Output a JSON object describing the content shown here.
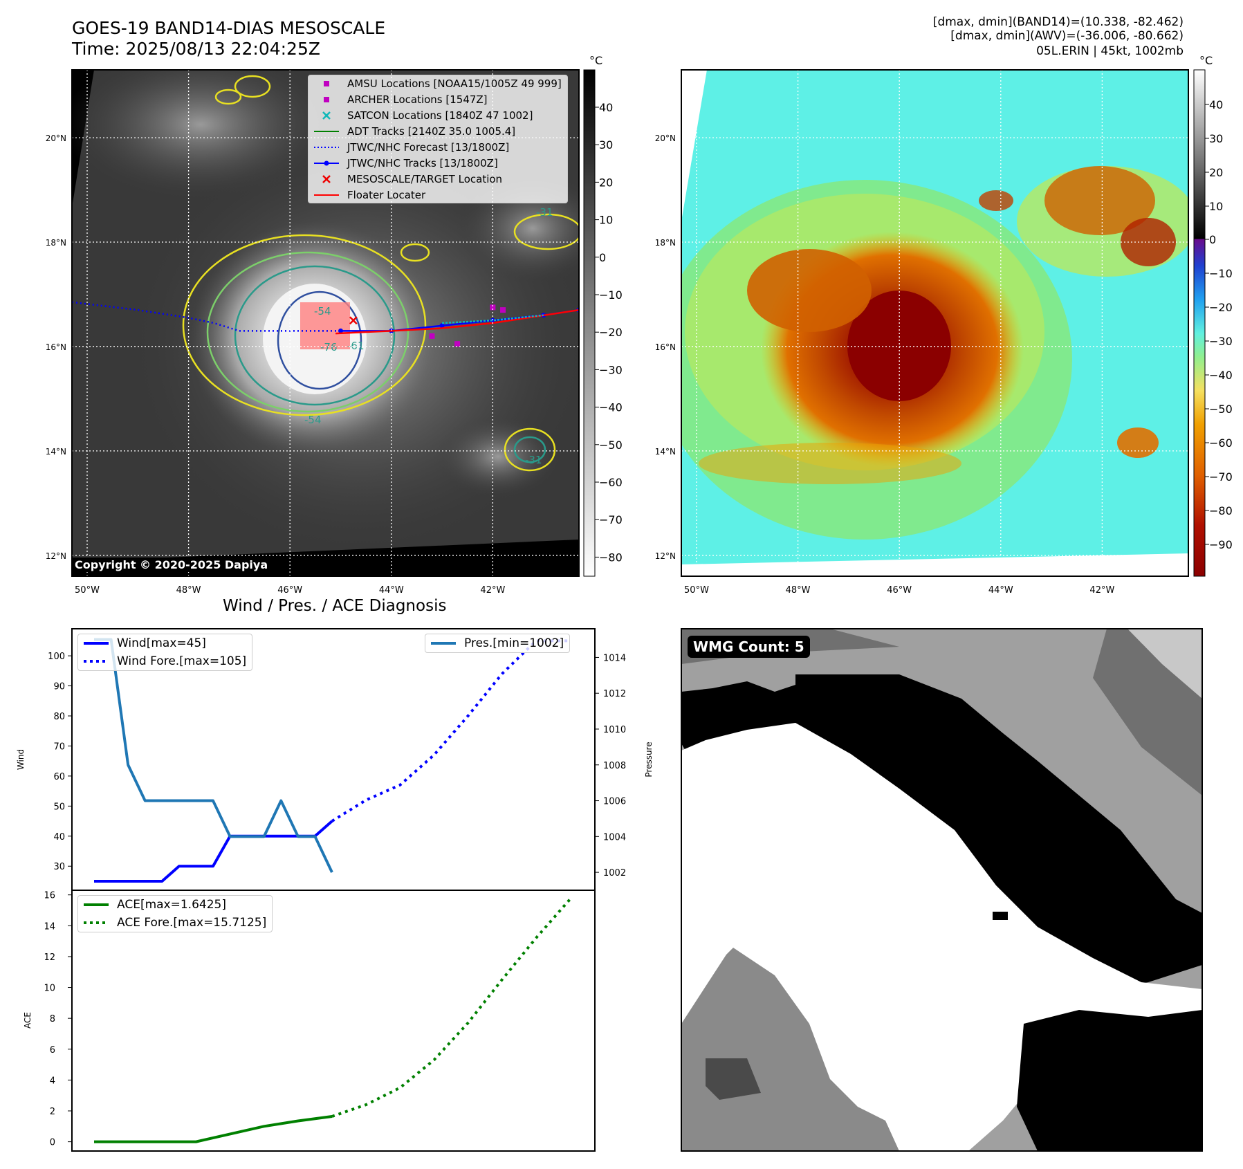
{
  "header": {
    "title": "GOES-19 BAND14-DIAS MESOSCALE",
    "time": "Time: 2025/08/13 22:04:25Z",
    "stats_band14": "[dmax, dmin](BAND14)=(10.338, -82.462)",
    "stats_awv": "[dmax, dmin](AWV)=(-36.006, -80.662)",
    "storm_info": "05L.ERIN | 45kt, 1002mb"
  },
  "colors": {
    "amsu": "#c000c0",
    "archer": "#c000c0",
    "satcon": "#10b8b8",
    "adt": "#008000",
    "jtwc_forecast": "#0000ff",
    "jtwc_tracks": "#0000ff",
    "target": "#ee0000",
    "floater": "#ff0000",
    "wind": "#0000ff",
    "pressure": "#1f77b4",
    "ace": "#008000"
  },
  "map": {
    "lon_ticks": [
      "50°W",
      "48°W",
      "46°W",
      "44°W",
      "42°W"
    ],
    "lat_ticks": [
      "12°N",
      "14°N",
      "16°N",
      "18°N",
      "20°N"
    ],
    "lon_range": [
      -50.3,
      -40.3
    ],
    "lat_range": [
      11.6,
      21.3
    ],
    "gray_colorbar_unit": "°C",
    "gray_colorbar_ticks": [
      "40",
      "30",
      "20",
      "10",
      "0",
      "−10",
      "−20",
      "−30",
      "−40",
      "−50",
      "−60",
      "−70",
      "−80"
    ],
    "color_colorbar_unit": "°C",
    "color_colorbar_ticks": [
      "40",
      "30",
      "20",
      "10",
      "0",
      "−10",
      "−20",
      "−30",
      "−40",
      "−50",
      "−60",
      "−70",
      "−80",
      "−90"
    ],
    "contour_labels": [
      "-54",
      "-76",
      "-61",
      "-54",
      "-31",
      "-31"
    ],
    "copyright": "Copyright © 2020-2025 Dapiya",
    "legend": [
      {
        "label": "AMSU Locations [NOAA15/1005Z 49 999]",
        "marker": "square",
        "color_key": "amsu"
      },
      {
        "label": "ARCHER Locations [1547Z]",
        "marker": "square",
        "color_key": "archer"
      },
      {
        "label": "SATCON Locations [1840Z 47 1002]",
        "marker": "x",
        "color_key": "satcon"
      },
      {
        "label": "ADT Tracks [2140Z 35.0 1005.4]",
        "marker": "line",
        "color_key": "adt"
      },
      {
        "label": "JTWC/NHC Forecast [13/1800Z]",
        "marker": "dotted",
        "color_key": "jtwc_forecast"
      },
      {
        "label": "JTWC/NHC Tracks [13/1800Z]",
        "marker": "line-dot",
        "color_key": "jtwc_tracks"
      },
      {
        "label": "MESOSCALE/TARGET Location",
        "marker": "x",
        "color_key": "target"
      },
      {
        "label": "Floater Locater",
        "marker": "line",
        "color_key": "floater"
      }
    ]
  },
  "wmg": {
    "label": "WMG Count: 5"
  },
  "chart_data": [
    {
      "type": "line",
      "title": "Wind / Pres. / ACE Diagnosis",
      "ylabel": "Wind",
      "y2label": "Pressure",
      "ylim": [
        22,
        109
      ],
      "y2lim": [
        1001,
        1015.6
      ],
      "yticks": [
        30,
        40,
        50,
        60,
        70,
        80,
        90,
        100
      ],
      "y2ticks": [
        1002,
        1004,
        1006,
        1008,
        1010,
        1012,
        1014
      ],
      "series": [
        {
          "name": "Wind[max=45]",
          "color_key": "wind",
          "style": "solid",
          "x": [
            0,
            1,
            2,
            3,
            4,
            5,
            6,
            7,
            8,
            9,
            10,
            11,
            12,
            13,
            14
          ],
          "y": [
            25,
            25,
            25,
            25,
            25,
            30,
            30,
            30,
            40,
            40,
            40,
            40,
            40,
            40,
            45
          ]
        },
        {
          "name": "Wind Fore.[max=105]",
          "color_key": "wind",
          "style": "dotted",
          "x": [
            14,
            16,
            18,
            20,
            22,
            24,
            26,
            28
          ],
          "y": [
            45,
            52,
            57,
            67,
            80,
            94,
            105,
            105
          ]
        },
        {
          "name": "Pres.[min=1002]",
          "color_key": "pressure",
          "style": "solid",
          "axis": "right",
          "x": [
            0,
            1,
            2,
            3,
            4,
            5,
            6,
            7,
            8,
            9,
            10,
            11,
            12,
            13,
            14
          ],
          "y": [
            1015,
            1015,
            1008,
            1006,
            1006,
            1006,
            1006,
            1006,
            1004,
            1004,
            1004,
            1006,
            1004,
            1004,
            1002
          ]
        }
      ],
      "legend_left": [
        "Wind[max=45]",
        "Wind Fore.[max=105]"
      ],
      "legend_right": [
        "Pres.[min=1002]"
      ]
    },
    {
      "type": "line",
      "ylabel": "ACE",
      "ylim": [
        -0.6,
        16.3
      ],
      "yticks": [
        0,
        2,
        4,
        6,
        8,
        10,
        12,
        14,
        16
      ],
      "series": [
        {
          "name": "ACE[max=1.6425]",
          "color_key": "ace",
          "style": "solid",
          "x": [
            0,
            2,
            4,
            6,
            8,
            10,
            12,
            14
          ],
          "y": [
            0,
            0,
            0,
            0,
            0.5,
            1.0,
            1.35,
            1.6425
          ]
        },
        {
          "name": "ACE Fore.[max=15.7125]",
          "color_key": "ace",
          "style": "dotted",
          "x": [
            14,
            16,
            18,
            20,
            22,
            24,
            26,
            28
          ],
          "y": [
            1.6425,
            2.4,
            3.5,
            5.3,
            7.7,
            10.5,
            13.2,
            15.7125
          ]
        }
      ],
      "legend": [
        "ACE[max=1.6425]",
        "ACE Fore.[max=15.7125]"
      ]
    }
  ]
}
